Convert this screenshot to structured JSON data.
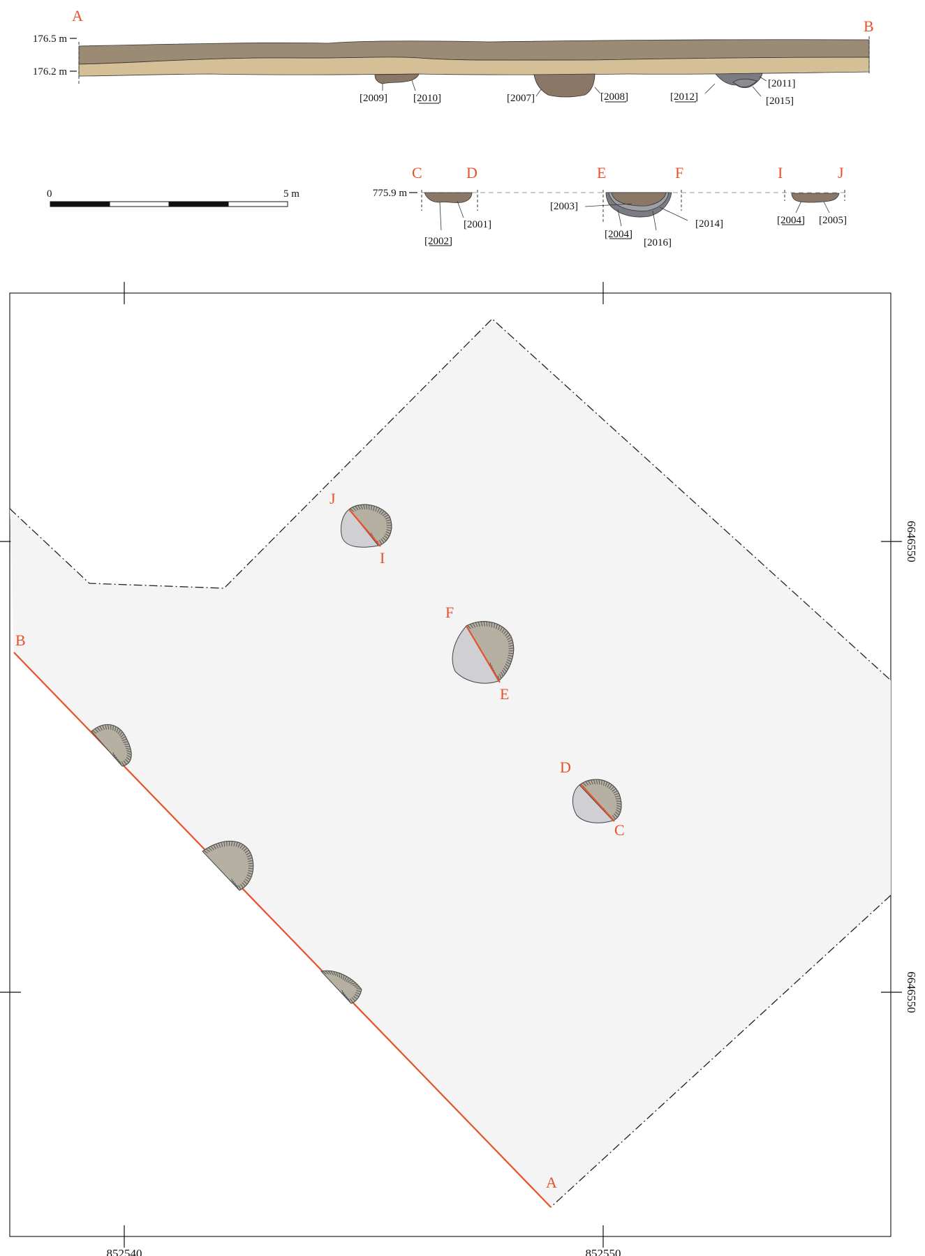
{
  "colors": {
    "section_line": "#e8502a",
    "letter": "#e8502a",
    "upper_layer": "#9b8a74",
    "lower_layer": "#d5bf97",
    "fill_brown": "#8a7766",
    "fill_grey": "#7a7c82",
    "pit_shaded": "#b6b0a2",
    "pit_unexcavated": "#cfcfd4",
    "excavation_area": "#f4f4f4"
  },
  "section_ab": {
    "letter_a": "A",
    "letter_b": "B",
    "elev_top": "176.5 m",
    "elev_bottom": "176.2 m",
    "labels": {
      "c2009": "[2009]",
      "c2010": "[2010]",
      "c2007": "[2007]",
      "c2008": "[2008]",
      "c2012": "[2012]",
      "c2011": "[2011]",
      "c2015": "[2015]"
    }
  },
  "scale_bar": {
    "start_label": "0",
    "end_label": "5 m"
  },
  "sections_small": {
    "elev": "775.9 m",
    "letters": {
      "c": "C",
      "d": "D",
      "e": "E",
      "f": "F",
      "i": "I",
      "j": "J"
    },
    "labels": {
      "c2001": "[2001]",
      "c2002": "[2002]",
      "c2003": "[2003]",
      "c2004_ef": "[2004]",
      "c2016": "[2016]",
      "c2014": "[2014]",
      "c2004_ij": "[2004]",
      "c2005": "[2005]"
    }
  },
  "plan": {
    "easting_left": "852540",
    "easting_right": "852550",
    "northing_top": "6646550",
    "northing_bottom": "6646550",
    "letters": {
      "j": "J",
      "i": "I",
      "f": "F",
      "e": "E",
      "d": "D",
      "c": "C",
      "b": "B",
      "a": "A"
    }
  }
}
